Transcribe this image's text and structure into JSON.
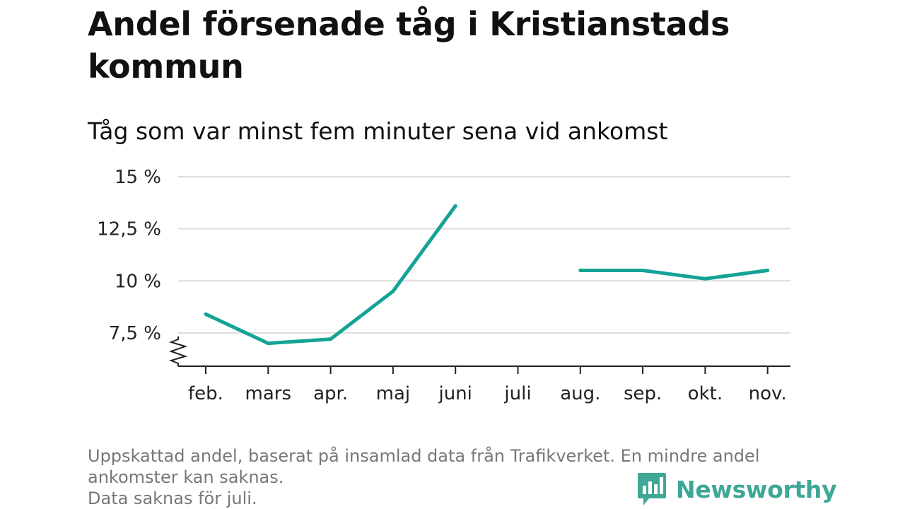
{
  "title": "Andel försenade tåg i Kristianstads kommun",
  "subtitle": "Tåg som var minst fem minuter sena vid ankomst",
  "footnote": {
    "line1": "Uppskattad andel, baserat på insamlad data från Trafikverket. En mindre andel ankomster kan saknas.",
    "line2": "Data saknas för juli."
  },
  "brand": {
    "name": "Newsworthy",
    "logo_icon": "bar-chart-speech-bubble-icon",
    "color": "#3fa796"
  },
  "colors": {
    "line": "#14a396",
    "grid": "#dddddd",
    "axis": "#222222"
  },
  "chart_data": {
    "type": "line",
    "title": "Andel försenade tåg i Kristianstads kommun",
    "subtitle": "Tåg som var minst fem minuter sena vid ankomst",
    "categories": [
      "feb.",
      "mars",
      "apr.",
      "maj",
      "juni",
      "juli",
      "aug.",
      "sep.",
      "okt.",
      "nov."
    ],
    "series": [
      {
        "values": [
          8.4,
          7.0,
          7.2,
          9.5,
          13.6,
          null,
          10.5,
          10.5,
          10.1,
          10.5
        ]
      }
    ],
    "yticks": [
      {
        "value": 7.5,
        "label": "7,5 %"
      },
      {
        "value": 10,
        "label": "10 %"
      },
      {
        "value": 12.5,
        "label": "12,5 %"
      },
      {
        "value": 15,
        "label": "15 %"
      }
    ],
    "ylim": [
      5.9,
      15
    ],
    "y_axis_break": true,
    "grid": true,
    "xlabel": "",
    "ylabel": ""
  }
}
